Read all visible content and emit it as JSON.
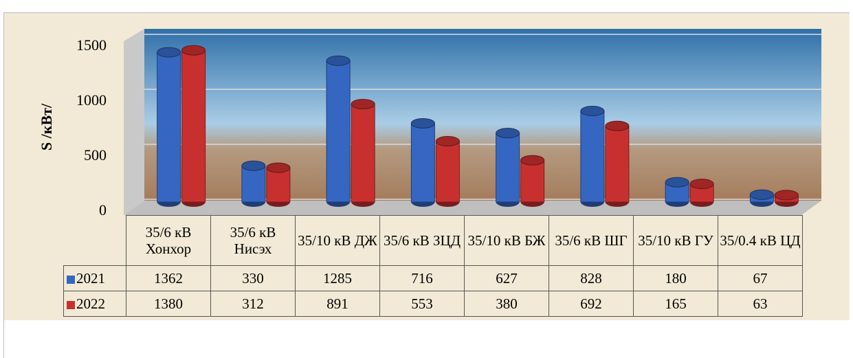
{
  "chart_data": {
    "type": "bar",
    "y_label": "S /кВт/",
    "categories": [
      "35/6 кВ Хонхор",
      "35/6 кВ Нисэх",
      "35/10 кВ ДЖ",
      "35/6 кВ ЗЦД",
      "35/10 кВ БЖ",
      "35/6 кВ ШГ",
      "35/10 кВ ГУ",
      "35/0.4 кВ ЦД"
    ],
    "series": [
      {
        "name": "2021",
        "color": "#3567c2",
        "values": [
          1362,
          330,
          1285,
          716,
          627,
          828,
          180,
          67
        ]
      },
      {
        "name": "2022",
        "color": "#c8302f",
        "values": [
          1380,
          312,
          891,
          553,
          380,
          692,
          165,
          63
        ]
      }
    ],
    "ylim": [
      0,
      1500
    ],
    "yticks": [
      0,
      500,
      1000,
      1500
    ],
    "grid": true
  }
}
